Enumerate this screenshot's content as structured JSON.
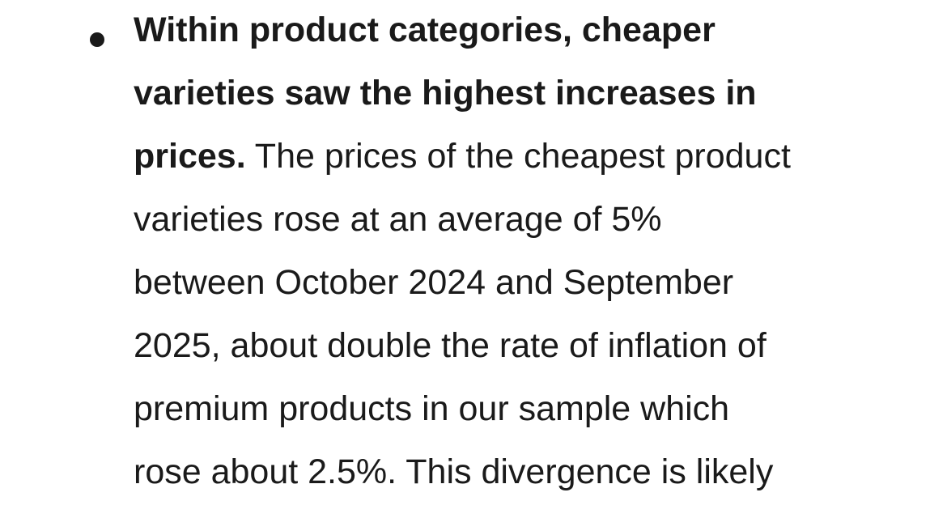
{
  "bullet": {
    "bold_lines": [
      "Within product categories, cheaper",
      "varieties saw the highest increases in",
      "prices."
    ],
    "rest_of_line3": " The prices of the cheapest product",
    "lines": [
      "varieties rose at an average of 5%",
      "between October 2024 and September",
      "2025, about double the rate of inflation of",
      "premium products in our sample which",
      "rose about 2.5%. This divergence is likely"
    ]
  }
}
